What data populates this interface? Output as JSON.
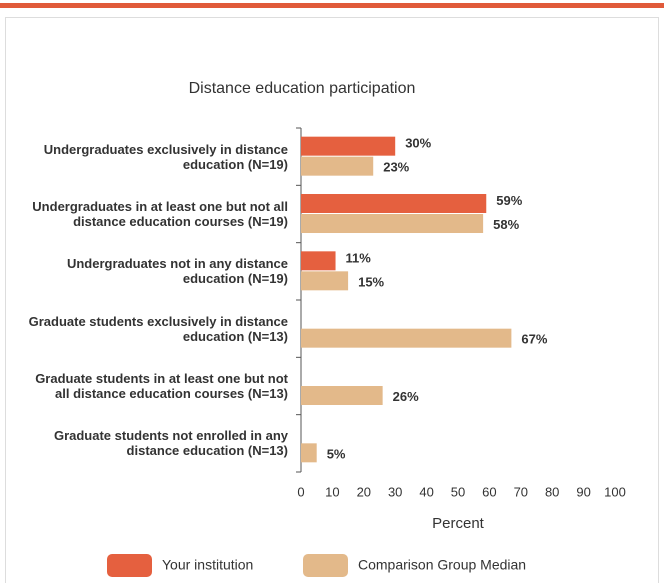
{
  "chart_data": {
    "type": "hbar",
    "title": "Distance education participation",
    "categories": [
      "Undergraduates exclusively in distance education (N=19)",
      "Undergraduates in at least one but not all distance education courses (N=19)",
      "Undergraduates not in any distance education (N=19)",
      "Graduate students exclusively in distance education (N=13)",
      "Graduate students in at least one but not all distance education courses (N=13)",
      "Graduate students not enrolled in any distance education (N=13)"
    ],
    "series": [
      {
        "name": "Your institution",
        "color": "#e5603f",
        "values": [
          30,
          59,
          11,
          null,
          null,
          null
        ],
        "value_labels": [
          "30%",
          "59%",
          "11%",
          null,
          null,
          null
        ]
      },
      {
        "name": "Comparison Group Median",
        "color": "#e3b98a",
        "values": [
          23,
          58,
          15,
          67,
          26,
          5
        ],
        "value_labels": [
          "23%",
          "58%",
          "15%",
          "67%",
          "26%",
          "5%"
        ]
      }
    ],
    "x_label": "Percent",
    "xlim": [
      0,
      100
    ],
    "xticks": [
      0,
      10,
      20,
      30,
      40,
      50,
      60,
      70,
      80,
      90,
      100
    ],
    "grid": false,
    "legend": "bottom"
  }
}
